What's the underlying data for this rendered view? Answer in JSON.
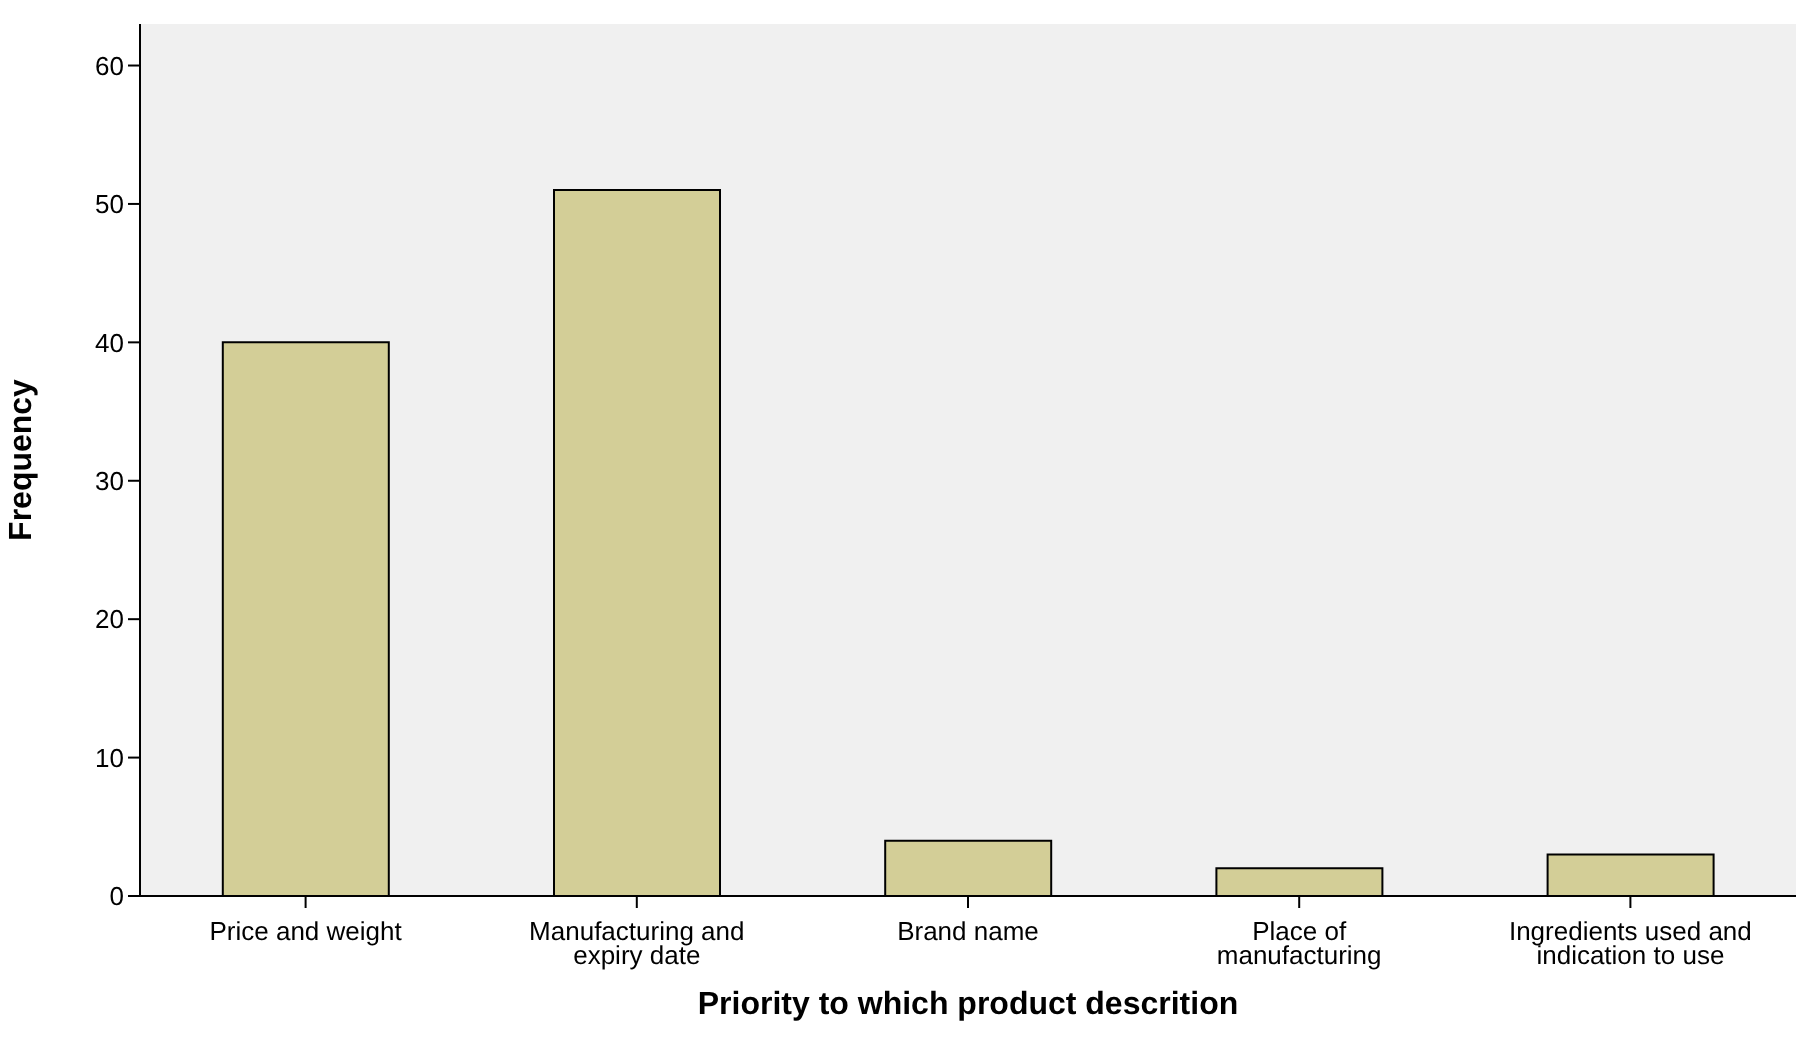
{
  "chart_data": {
    "type": "bar",
    "xlabel": "Priority to which product descrition",
    "ylabel": "Frequency",
    "categories": [
      "Price and weight",
      "Manufacturing and expiry date",
      "Brand name",
      "Place of manufacturing",
      "Ingredients used and indication to use"
    ],
    "values": [
      40,
      51,
      4,
      2,
      3
    ],
    "color": "#d3ce97",
    "ylim": [
      0,
      63
    ],
    "yticks": [
      0,
      10,
      20,
      30,
      40,
      50,
      60
    ],
    "grid": false
  }
}
